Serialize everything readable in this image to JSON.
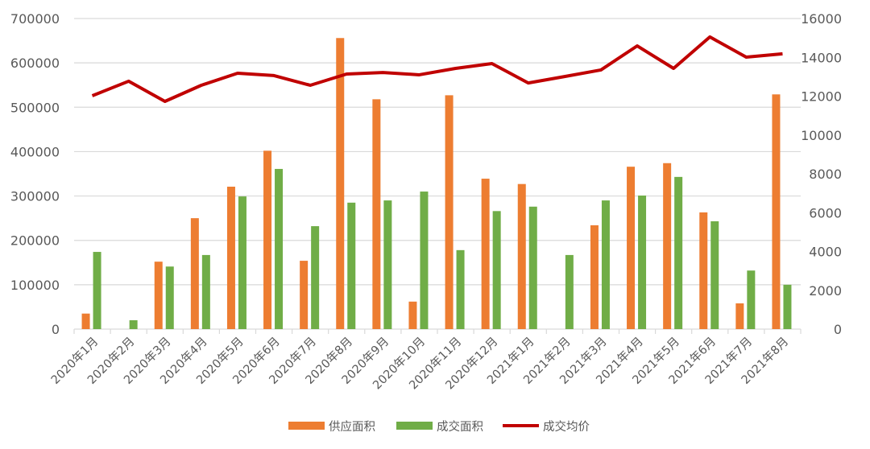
{
  "chart_data": {
    "type": "bar+line",
    "categories": [
      "2020年1月",
      "2020年2月",
      "2020年3月",
      "2020年4月",
      "2020年5月",
      "2020年6月",
      "2020年7月",
      "2020年8月",
      "2020年9月",
      "2020年10月",
      "2020年11月",
      "2020年12月",
      "2021年1月",
      "2021年2月",
      "2021年3月",
      "2021年4月",
      "2021年5月",
      "2021年6月",
      "2021年7月",
      "2021年8月"
    ],
    "series": [
      {
        "name": "供应面积",
        "type": "bar",
        "axis": "left",
        "color": "#ED7D31",
        "values": [
          35000,
          0,
          152000,
          250000,
          321000,
          402000,
          154000,
          656000,
          518000,
          62000,
          527000,
          339000,
          327000,
          0,
          234000,
          366000,
          374000,
          263000,
          58000,
          529000
        ]
      },
      {
        "name": "成交面积",
        "type": "bar",
        "axis": "left",
        "color": "#70AD47",
        "values": [
          174000,
          20000,
          141000,
          167000,
          299000,
          361000,
          232000,
          285000,
          290000,
          310000,
          178000,
          266000,
          276000,
          167000,
          290000,
          301000,
          343000,
          243000,
          132000,
          100000
        ]
      },
      {
        "name": "成交均价",
        "type": "line",
        "axis": "right",
        "color": "#C00000",
        "values": [
          12020,
          12770,
          11730,
          12560,
          13180,
          13060,
          12560,
          13140,
          13220,
          13100,
          13430,
          13680,
          12680,
          13010,
          13350,
          14590,
          13430,
          15050,
          14010,
          14180
        ]
      }
    ],
    "y_left": {
      "range": [
        0,
        700000
      ],
      "ticks": [
        "0",
        "100000",
        "200000",
        "300000",
        "400000",
        "500000",
        "600000",
        "700000"
      ]
    },
    "y_right": {
      "range": [
        0,
        16000
      ],
      "ticks": [
        "0",
        "2000",
        "4000",
        "6000",
        "8000",
        "10000",
        "12000",
        "14000",
        "16000"
      ]
    },
    "grid": true,
    "legend_placement": "bottom"
  }
}
